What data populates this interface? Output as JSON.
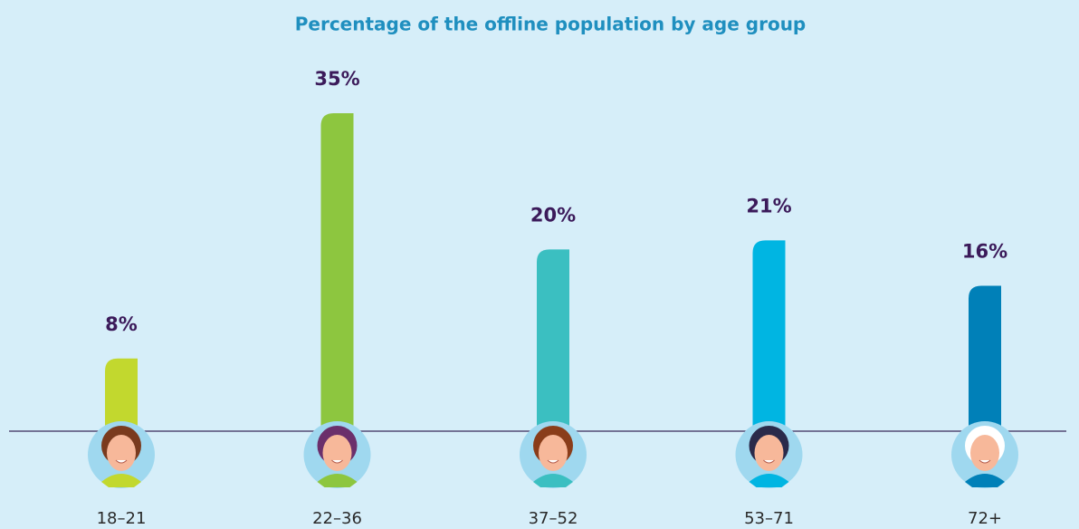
{
  "chart_data": {
    "type": "bar",
    "title": "Percentage of the offline population by age group",
    "categories": [
      "18–21",
      "22–36",
      "37–52",
      "53–71",
      "72+"
    ],
    "values": [
      8,
      35,
      20,
      21,
      16
    ],
    "value_labels": [
      "8%",
      "35%",
      "20%",
      "21%",
      "16%"
    ],
    "colors": [
      "#c2d82e",
      "#8dc63f",
      "#3bbfc1",
      "#00b5e2",
      "#0080b8"
    ]
  }
}
